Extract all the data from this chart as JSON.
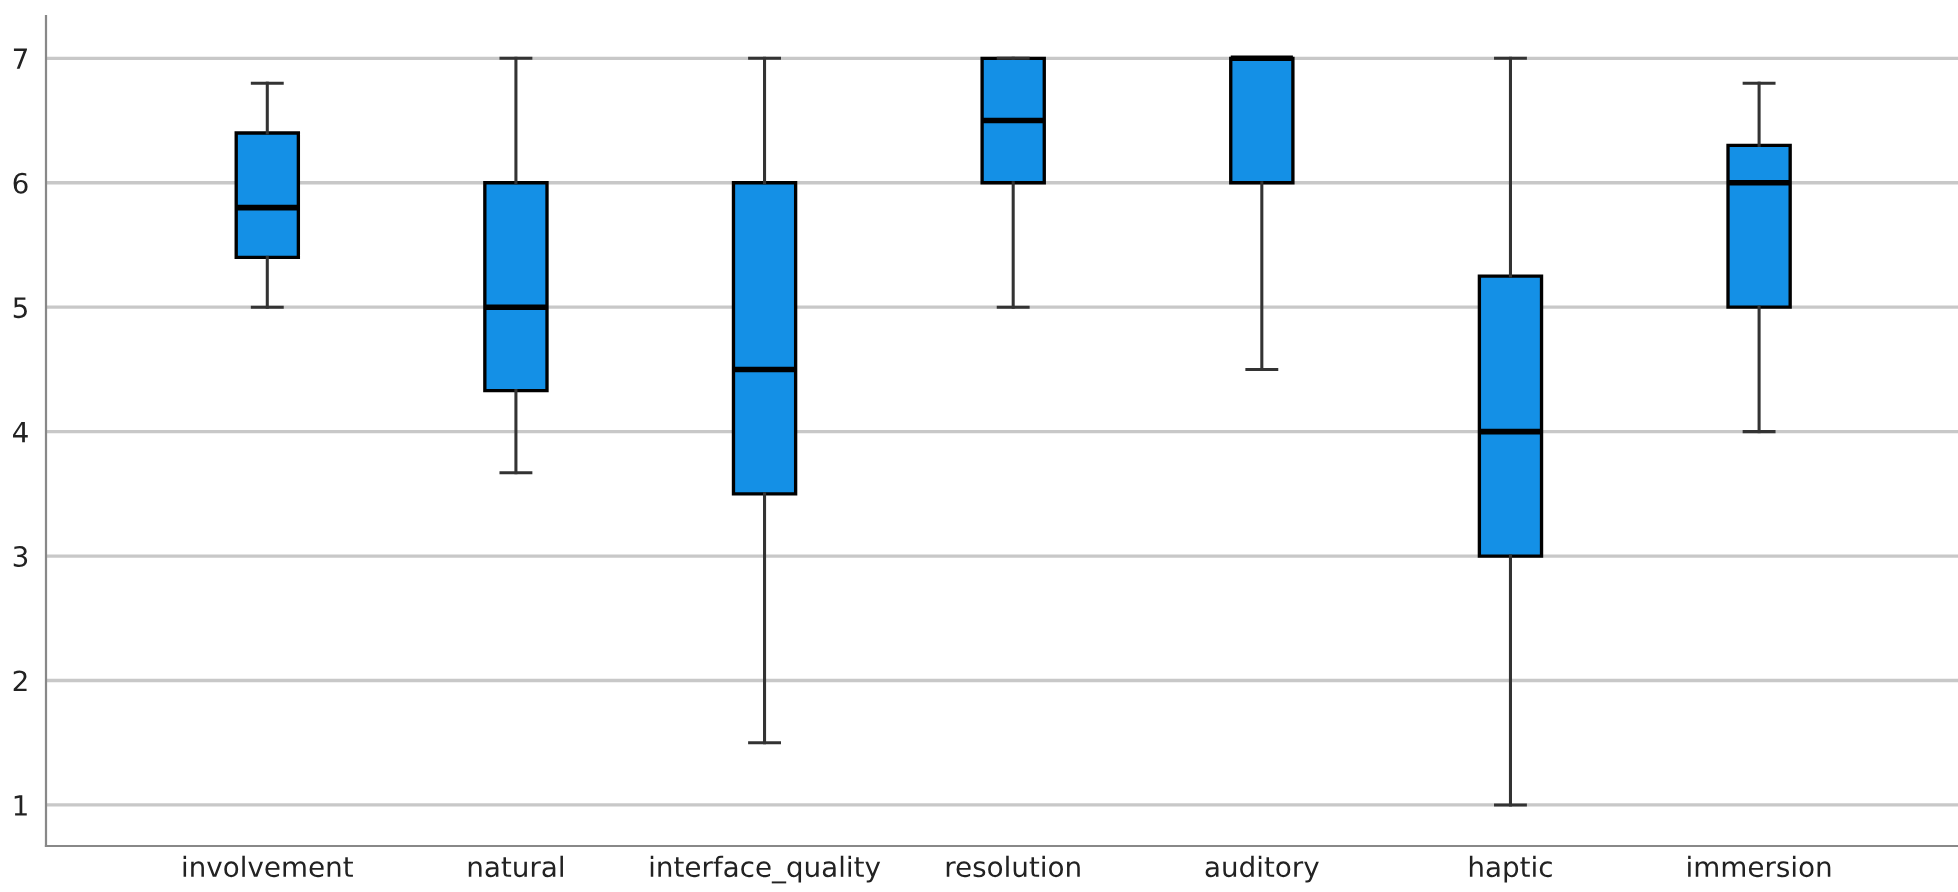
{
  "chart_data": {
    "type": "box",
    "categories": [
      "involvement",
      "natural",
      "interface_quality",
      "resolution",
      "auditory",
      "haptic",
      "immersion"
    ],
    "boxes": [
      {
        "low": 5,
        "q1": 5.4,
        "median": 5.8,
        "q3": 6.4,
        "high": 6.8
      },
      {
        "low": 3.67,
        "q1": 4.33,
        "median": 5,
        "q3": 6,
        "high": 7
      },
      {
        "low": 1.5,
        "q1": 3.5,
        "median": 4.5,
        "q3": 6,
        "high": 7
      },
      {
        "low": 5,
        "q1": 6,
        "median": 6.5,
        "q3": 7,
        "high": 7
      },
      {
        "low": 4.5,
        "q1": 6,
        "median": 7,
        "q3": 7,
        "high": 7
      },
      {
        "low": 1,
        "q1": 3,
        "median": 4,
        "q3": 5.25,
        "high": 7
      },
      {
        "low": 4,
        "q1": 5,
        "median": 6,
        "q3": 6.3,
        "high": 6.8
      }
    ],
    "color": "#1490e6",
    "ylim": [
      0.67,
      7.34
    ],
    "yticks": [
      1,
      2,
      3,
      4,
      5,
      6,
      7
    ],
    "grid": "y"
  }
}
